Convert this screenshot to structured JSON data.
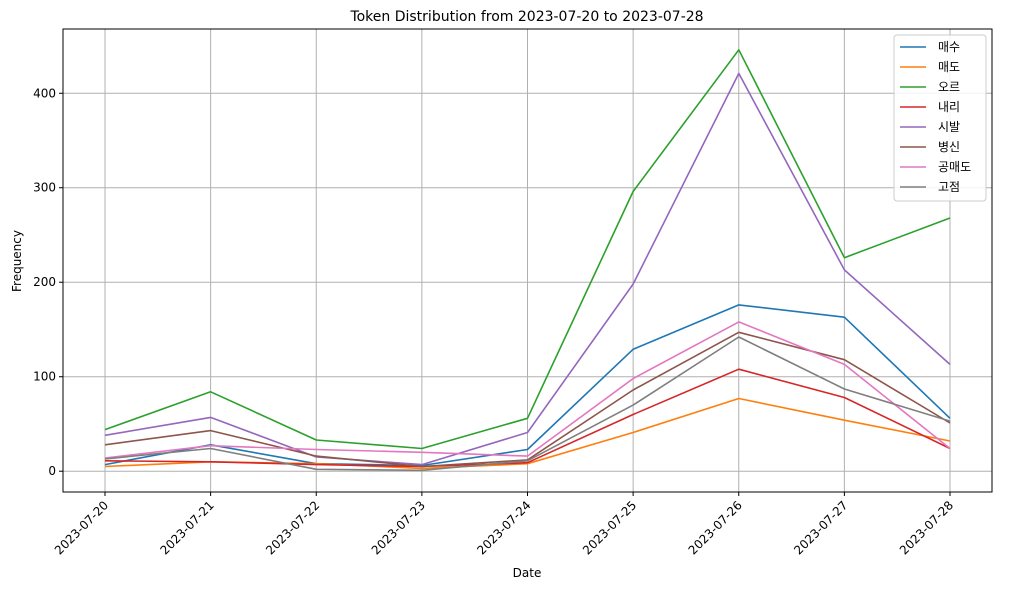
{
  "chart_data": {
    "type": "line",
    "title": "Token Distribution from 2023-07-20 to 2023-07-28",
    "xlabel": "Date",
    "ylabel": "Frequency",
    "categories": [
      "2023-07-20",
      "2023-07-21",
      "2023-07-22",
      "2023-07-23",
      "2023-07-24",
      "2023-07-25",
      "2023-07-26",
      "2023-07-27",
      "2023-07-28"
    ],
    "ylim": [
      -22,
      468
    ],
    "yticks": [
      0,
      100,
      200,
      300,
      400
    ],
    "grid": true,
    "legend_position": "top-right",
    "series": [
      {
        "name": "매수",
        "color": "#1f77b4",
        "values": [
          7,
          28,
          8,
          6,
          23,
          129,
          176,
          163,
          56
        ]
      },
      {
        "name": "매도",
        "color": "#ff7f0e",
        "values": [
          5,
          10,
          8,
          3,
          8,
          41,
          77,
          54,
          32
        ]
      },
      {
        "name": "오르",
        "color": "#2ca02c",
        "values": [
          44,
          84,
          33,
          24,
          56,
          296,
          446,
          226,
          268
        ]
      },
      {
        "name": "내리",
        "color": "#d62728",
        "values": [
          11,
          10,
          7,
          5,
          9,
          60,
          108,
          78,
          24
        ]
      },
      {
        "name": "시발",
        "color": "#9467bd",
        "values": [
          38,
          57,
          15,
          7,
          41,
          198,
          421,
          213,
          113
        ]
      },
      {
        "name": "병신",
        "color": "#8c564b",
        "values": [
          28,
          43,
          16,
          5,
          12,
          86,
          147,
          118,
          51
        ]
      },
      {
        "name": "공매도",
        "color": "#e377c2",
        "values": [
          14,
          27,
          23,
          20,
          16,
          98,
          158,
          113,
          24
        ]
      },
      {
        "name": "고점",
        "color": "#7f7f7f",
        "values": [
          13,
          24,
          2,
          1,
          11,
          70,
          142,
          87,
          53
        ]
      }
    ]
  }
}
